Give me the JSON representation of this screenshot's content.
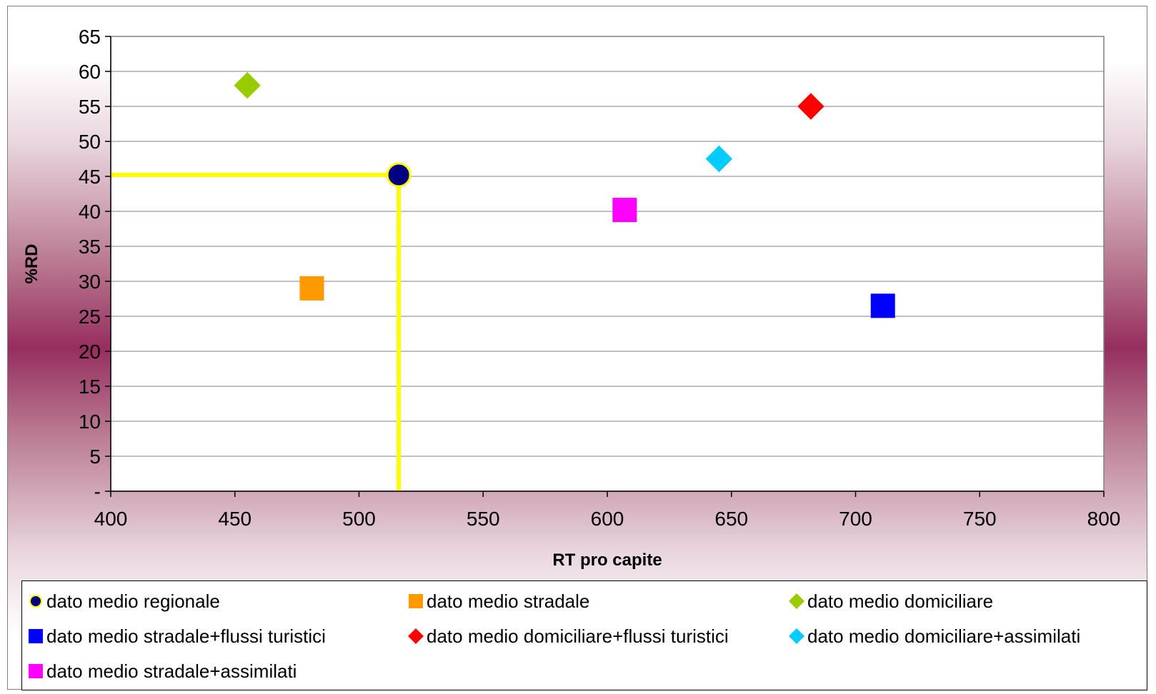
{
  "chart_data": {
    "type": "scatter",
    "title": "",
    "xlabel": "RT pro capite",
    "ylabel": "%RD",
    "xlim": [
      400,
      800
    ],
    "ylim": [
      0,
      65
    ],
    "x_ticks": [
      "400",
      "450",
      "500",
      "550",
      "600",
      "650",
      "700",
      "750",
      "800"
    ],
    "y_ticks": [
      "-",
      "5",
      "10",
      "15",
      "20",
      "25",
      "30",
      "35",
      "40",
      "45",
      "50",
      "55",
      "60",
      "65"
    ],
    "grid": "horizontal",
    "legend_position": "bottom",
    "series": [
      {
        "name": "dato medio regionale",
        "marker": "circle",
        "color": "#000080",
        "outline": "#ffff00",
        "x": 516,
        "y": 45.2
      },
      {
        "name": "dato medio stradale",
        "marker": "square",
        "color": "#ff9900",
        "x": 481,
        "y": 29.0
      },
      {
        "name": "dato medio domiciliare",
        "marker": "diamond",
        "color": "#99cc00",
        "x": 455,
        "y": 58.0
      },
      {
        "name": "dato medio stradale+flussi turistici",
        "marker": "square",
        "color": "#0000ff",
        "x": 711,
        "y": 26.5
      },
      {
        "name": "dato medio domiciliare+flussi turistici",
        "marker": "diamond",
        "color": "#ff0000",
        "x": 682,
        "y": 55.0
      },
      {
        "name": "dato medio domiciliare+assimilati",
        "marker": "diamond",
        "color": "#00ccff",
        "x": 645,
        "y": 47.5
      },
      {
        "name": "dato medio stradale+assimilati",
        "marker": "square",
        "color": "#ff00ff",
        "x": 607,
        "y": 40.2
      }
    ],
    "reference_lines": {
      "color": "#ffff00",
      "x": 516,
      "y": 45.2
    }
  }
}
